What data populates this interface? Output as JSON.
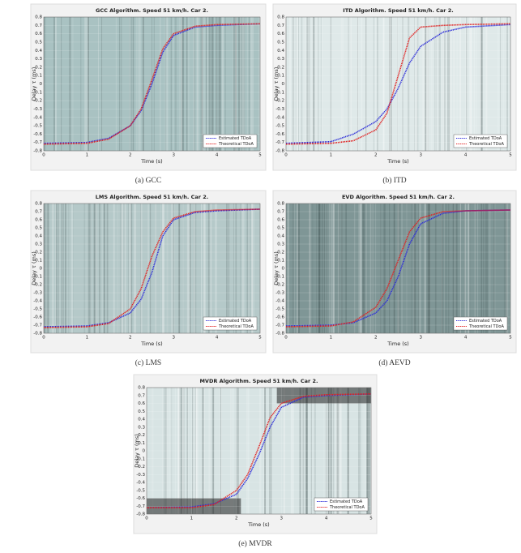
{
  "chart_data": [
    {
      "type": "line",
      "title": "GCC Algorithm. Speed 51 km/h. Car 2.",
      "xlabel": "Time (s)",
      "ylabel": "Delay τ (ms)",
      "caption": "(a) GCC",
      "x": [
        0,
        1,
        1.5,
        2,
        2.25,
        2.5,
        2.75,
        3,
        3.5,
        4,
        5
      ],
      "series": [
        {
          "name": "Estimated TDoA",
          "color": "#2b2bd8",
          "values": [
            -0.71,
            -0.7,
            -0.65,
            -0.5,
            -0.32,
            0.0,
            0.38,
            0.58,
            0.68,
            0.7,
            0.72
          ]
        },
        {
          "name": "Theoretical TDoA",
          "color": "#e02020",
          "values": [
            -0.72,
            -0.71,
            -0.66,
            -0.5,
            -0.3,
            0.05,
            0.42,
            0.6,
            0.69,
            0.71,
            0.72
          ]
        }
      ],
      "xlim": [
        0,
        5
      ],
      "xticks": [
        0,
        1,
        2,
        3,
        4,
        5
      ],
      "ylim": [
        -0.8,
        0.8
      ],
      "yticks": [
        -0.8,
        -0.7,
        -0.6,
        -0.5,
        -0.4,
        -0.3,
        -0.2,
        -0.1,
        0,
        0.1,
        0.2,
        0.3,
        0.4,
        0.5,
        0.6,
        0.7,
        0.8
      ],
      "grid": true,
      "legend": "lower right"
    },
    {
      "type": "line",
      "title": "ITD Algorithm. Speed 51 km/h. Car 2.",
      "xlabel": "Time (s)",
      "ylabel": "Delay τ (ms)",
      "caption": "(b) ITD",
      "x": [
        0,
        1,
        1.5,
        2,
        2.25,
        2.5,
        2.75,
        3,
        3.5,
        4,
        5
      ],
      "series": [
        {
          "name": "Estimated TDoA",
          "color": "#2b2bd8",
          "values": [
            -0.71,
            -0.69,
            -0.6,
            -0.45,
            -0.3,
            -0.05,
            0.25,
            0.45,
            0.62,
            0.68,
            0.71
          ]
        },
        {
          "name": "Theoretical TDoA",
          "color": "#e02020",
          "values": [
            -0.72,
            -0.71,
            -0.68,
            -0.55,
            -0.35,
            0.1,
            0.55,
            0.68,
            0.7,
            0.71,
            0.72
          ]
        }
      ],
      "xlim": [
        0,
        5
      ],
      "xticks": [
        0,
        1,
        2,
        3,
        4,
        5
      ],
      "ylim": [
        -0.8,
        0.8
      ],
      "yticks": [
        -0.8,
        -0.7,
        -0.6,
        -0.5,
        -0.4,
        -0.3,
        -0.2,
        -0.1,
        0,
        0.1,
        0.2,
        0.3,
        0.4,
        0.5,
        0.6,
        0.7,
        0.8
      ],
      "grid": true,
      "legend": "lower right"
    },
    {
      "type": "line",
      "title": "LMS Algorithm. Speed 51 km/h. Car 2.",
      "xlabel": "Time (s)",
      "ylabel": "Delay τ (ms)",
      "caption": "(c) LMS",
      "x": [
        0,
        1,
        1.5,
        2,
        2.25,
        2.5,
        2.75,
        3,
        3.5,
        4,
        5
      ],
      "series": [
        {
          "name": "Estimated TDoA",
          "color": "#2b2bd8",
          "values": [
            -0.72,
            -0.71,
            -0.67,
            -0.55,
            -0.38,
            -0.05,
            0.4,
            0.6,
            0.69,
            0.71,
            0.73
          ]
        },
        {
          "name": "Theoretical TDoA",
          "color": "#e02020",
          "values": [
            -0.73,
            -0.72,
            -0.68,
            -0.5,
            -0.25,
            0.15,
            0.45,
            0.62,
            0.7,
            0.72,
            0.73
          ]
        }
      ],
      "xlim": [
        0,
        5
      ],
      "xticks": [
        0,
        1,
        2,
        3,
        4,
        5
      ],
      "ylim": [
        -0.8,
        0.8
      ],
      "yticks": [
        -0.8,
        -0.7,
        -0.6,
        -0.5,
        -0.4,
        -0.3,
        -0.2,
        -0.1,
        0,
        0.1,
        0.2,
        0.3,
        0.4,
        0.5,
        0.6,
        0.7,
        0.8
      ],
      "grid": true,
      "legend": "lower right"
    },
    {
      "type": "line",
      "title": "EVD Algorithm. Speed 51 km/h. Car 2.",
      "xlabel": "Time (s)",
      "ylabel": "Delay τ (ms)",
      "caption": "(d) AEVD",
      "x": [
        0,
        1,
        1.5,
        2,
        2.25,
        2.5,
        2.75,
        3,
        3.5,
        4,
        5
      ],
      "series": [
        {
          "name": "Estimated TDoA",
          "color": "#2b2bd8",
          "values": [
            -0.71,
            -0.7,
            -0.67,
            -0.55,
            -0.4,
            -0.1,
            0.3,
            0.55,
            0.68,
            0.71,
            0.72
          ]
        },
        {
          "name": "Theoretical TDoA",
          "color": "#e02020",
          "values": [
            -0.72,
            -0.71,
            -0.66,
            -0.48,
            -0.25,
            0.1,
            0.45,
            0.62,
            0.7,
            0.71,
            0.72
          ]
        }
      ],
      "xlim": [
        0,
        5
      ],
      "xticks": [
        0,
        1,
        2,
        3,
        4,
        5
      ],
      "ylim": [
        -0.8,
        0.8
      ],
      "yticks": [
        -0.8,
        -0.7,
        -0.6,
        -0.5,
        -0.4,
        -0.3,
        -0.2,
        -0.1,
        0,
        0.1,
        0.2,
        0.3,
        0.4,
        0.5,
        0.6,
        0.7,
        0.8
      ],
      "grid": true,
      "legend": "lower right"
    },
    {
      "type": "line",
      "title": "MVDR Algorithm. Speed 51 km/h. Car 2.",
      "xlabel": "Time (s)",
      "ylabel": "Delay τ (ms)",
      "caption": "(e) MVDR",
      "x": [
        0,
        1,
        1.5,
        2,
        2.25,
        2.5,
        2.75,
        3,
        3.5,
        4,
        5
      ],
      "series": [
        {
          "name": "Estimated TDoA",
          "color": "#2b2bd8",
          "values": [
            -0.72,
            -0.71,
            -0.67,
            -0.55,
            -0.35,
            -0.05,
            0.3,
            0.55,
            0.68,
            0.7,
            0.72
          ]
        },
        {
          "name": "Theoretical TDoA",
          "color": "#e02020",
          "values": [
            -0.72,
            -0.72,
            -0.68,
            -0.5,
            -0.3,
            0.05,
            0.42,
            0.6,
            0.69,
            0.71,
            0.72
          ]
        }
      ],
      "xlim": [
        0,
        5
      ],
      "xticks": [
        0,
        1,
        2,
        3,
        4,
        5
      ],
      "ylim": [
        -0.8,
        0.8
      ],
      "yticks": [
        -0.8,
        -0.7,
        -0.6,
        -0.5,
        -0.4,
        -0.3,
        -0.2,
        -0.1,
        0,
        0.1,
        0.2,
        0.3,
        0.4,
        0.5,
        0.6,
        0.7,
        0.8
      ],
      "grid": true,
      "legend": "lower right"
    }
  ]
}
